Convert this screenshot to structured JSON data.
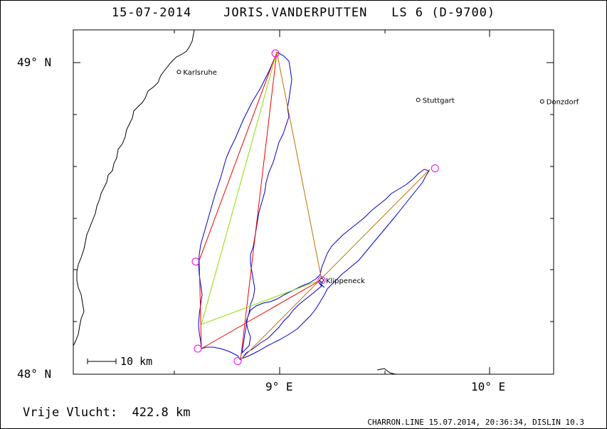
{
  "header": {
    "date": "15-07-2014",
    "pilot": "JORIS.VANDERPUTTEN",
    "glider": "LS 6 (D-9700)"
  },
  "axes": {
    "lat_labels": [
      "49° N",
      "48° N"
    ],
    "lon_labels": [
      "9° E",
      "10° E"
    ]
  },
  "scale_bar": {
    "label": "10 km"
  },
  "places": [
    {
      "name": "Karlsruhe",
      "lon": 8.52,
      "lat": 48.97
    },
    {
      "name": "Stuttgart",
      "lon": 9.66,
      "lat": 48.88
    },
    {
      "name": "Donzdorf",
      "lon": 10.25,
      "lat": 48.875
    },
    {
      "name": "Klippeneck",
      "lon": 9.2,
      "lat": 48.3
    }
  ],
  "turnpoints": [
    {
      "lon": 8.98,
      "lat": 49.03
    },
    {
      "lon": 8.6,
      "lat": 48.36
    },
    {
      "lon": 8.61,
      "lat": 48.08
    },
    {
      "lon": 8.8,
      "lat": 48.04
    },
    {
      "lon": 9.74,
      "lat": 48.66
    },
    {
      "lon": 9.2,
      "lat": 48.3
    }
  ],
  "colors": {
    "track": "#0000cc",
    "task_line": "#ee0000",
    "olc_line": "#88dd00",
    "turnpoint": "#ee00ee",
    "coast": "#000000"
  },
  "footer": {
    "distance_label": "Vrije Vlucht:",
    "distance_value": "422.8 km",
    "program": "CHARRON.LINE 15.07.2014, 20:36:34, DISLIN 10.3"
  }
}
